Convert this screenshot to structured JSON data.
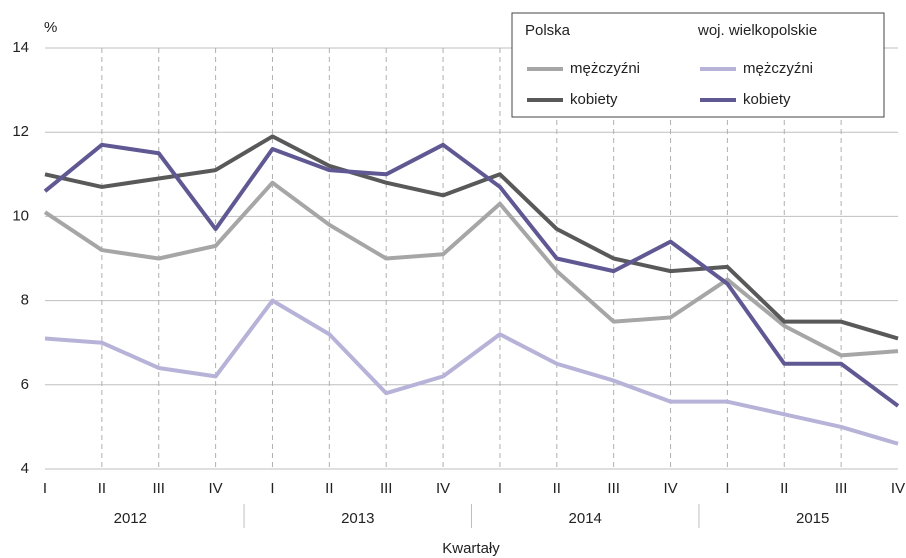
{
  "chart_data": {
    "type": "line",
    "y_unit": "%",
    "x_label": "Kwartały",
    "categories": [
      "I",
      "II",
      "III",
      "IV",
      "I",
      "II",
      "III",
      "IV",
      "I",
      "II",
      "III",
      "IV",
      "I",
      "II",
      "III",
      "IV"
    ],
    "years": [
      "2012",
      "2013",
      "2014",
      "2015"
    ],
    "legend_groups": [
      "Polska",
      "woj. wielkopolskie"
    ],
    "series": [
      {
        "name": "mężczyźni",
        "color": "#a6a6a6",
        "values": [
          10.1,
          9.2,
          9.0,
          9.3,
          10.8,
          9.8,
          9.0,
          9.1,
          10.3,
          8.7,
          7.5,
          7.6,
          8.5,
          7.4,
          6.7,
          6.8
        ]
      },
      {
        "name": "kobiety",
        "color": "#595959",
        "values": [
          11.0,
          10.7,
          10.9,
          11.1,
          11.9,
          11.2,
          10.8,
          10.5,
          11.0,
          9.7,
          9.0,
          8.7,
          8.8,
          7.5,
          7.5,
          7.1
        ]
      },
      {
        "name": "mężczyźni",
        "color": "#b7b3d8",
        "values": [
          7.1,
          7.0,
          6.4,
          6.2,
          8.0,
          7.2,
          5.8,
          6.2,
          7.2,
          6.5,
          6.1,
          5.6,
          5.6,
          5.3,
          5.0,
          4.6
        ]
      },
      {
        "name": "kobiety",
        "color": "#5f5893",
        "values": [
          10.6,
          11.7,
          11.5,
          9.7,
          11.6,
          11.1,
          11.0,
          11.7,
          10.7,
          9.0,
          8.7,
          9.4,
          8.4,
          6.5,
          6.5,
          5.5
        ]
      }
    ],
    "ylim": [
      4,
      14
    ],
    "yticks": [
      4,
      6,
      8,
      10,
      12,
      14
    ],
    "grid": true
  }
}
